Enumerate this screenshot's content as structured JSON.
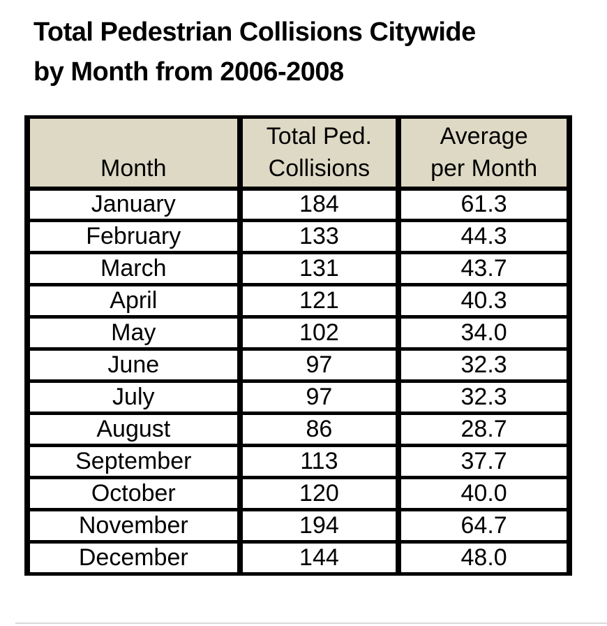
{
  "title": "Total Pedestrian Collisions Citywide\nby Month from 2006-2008",
  "colors": {
    "header_bg": "#ddd9c4",
    "border": "#000000",
    "text": "#000000",
    "background": "#ffffff"
  },
  "table": {
    "columns": [
      "Month",
      "Total Ped.\nCollisions",
      "Average\nper Month"
    ],
    "rows": [
      {
        "month": "January",
        "total": "184",
        "avg": "61.3"
      },
      {
        "month": "February",
        "total": "133",
        "avg": "44.3"
      },
      {
        "month": "March",
        "total": "131",
        "avg": "43.7"
      },
      {
        "month": "April",
        "total": "121",
        "avg": "40.3"
      },
      {
        "month": "May",
        "total": "102",
        "avg": "34.0"
      },
      {
        "month": "June",
        "total": "97",
        "avg": "32.3"
      },
      {
        "month": "July",
        "total": "97",
        "avg": "32.3"
      },
      {
        "month": "August",
        "total": "86",
        "avg": "28.7"
      },
      {
        "month": "September",
        "total": "113",
        "avg": "37.7"
      },
      {
        "month": "October",
        "total": "120",
        "avg": "40.0"
      },
      {
        "month": "November",
        "total": "194",
        "avg": "64.7"
      },
      {
        "month": "December",
        "total": "144",
        "avg": "48.0"
      }
    ]
  },
  "chart_data": {
    "type": "table",
    "title": "Total Pedestrian Collisions Citywide by Month from 2006-2008",
    "columns": [
      "Month",
      "Total Ped. Collisions",
      "Average per Month"
    ],
    "categories": [
      "January",
      "February",
      "March",
      "April",
      "May",
      "June",
      "July",
      "August",
      "September",
      "October",
      "November",
      "December"
    ],
    "series": [
      {
        "name": "Total Ped. Collisions",
        "values": [
          184,
          133,
          131,
          121,
          102,
          97,
          97,
          86,
          113,
          120,
          194,
          144
        ]
      },
      {
        "name": "Average per Month",
        "values": [
          61.3,
          44.3,
          43.7,
          40.3,
          34.0,
          32.3,
          32.3,
          28.7,
          37.7,
          40.0,
          64.7,
          48.0
        ]
      }
    ]
  }
}
